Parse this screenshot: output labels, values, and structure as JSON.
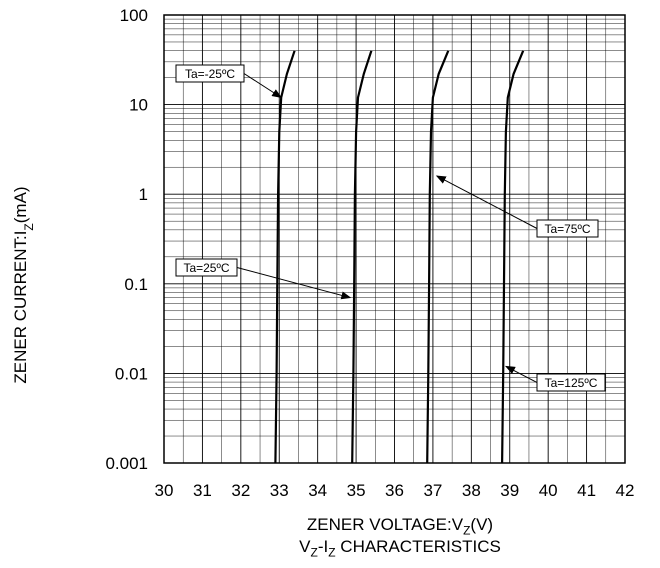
{
  "chart_data": {
    "type": "line",
    "xlabel": "ZENER VOLTAGE:VZ(V)",
    "xlabel_parts": {
      "pre": "ZENER VOLTAGE:V",
      "sub": "Z",
      "post": "(V)"
    },
    "ylabel": "ZENER CURRENT:IZ(mA)",
    "ylabel_parts": {
      "pre": "ZENER CURRENT:I",
      "sub": "Z",
      "post": "(mA)"
    },
    "caption": "VZ-IZ CHARACTERISTICS",
    "caption_parts": {
      "a": "V",
      "a_sub": "Z",
      "mid": "-I",
      "b_sub": "Z",
      "post": " CHARACTERISTICS"
    },
    "xlim": [
      30,
      42
    ],
    "ylim": [
      0.001,
      100
    ],
    "yscale": "log",
    "grid": true,
    "xticks": [
      "30",
      "31",
      "32",
      "33",
      "34",
      "35",
      "36",
      "37",
      "38",
      "39",
      "40",
      "41",
      "42"
    ],
    "yticks": [
      "0.001",
      "0.01",
      "0.1",
      "1",
      "10",
      "100"
    ],
    "series": [
      {
        "points": [
          [
            32.9,
            0.001
          ],
          [
            32.93,
            0.01
          ],
          [
            32.95,
            0.1
          ],
          [
            32.97,
            1
          ],
          [
            33.0,
            5
          ],
          [
            33.05,
            12
          ],
          [
            33.2,
            22
          ],
          [
            33.4,
            40
          ]
        ]
      },
      {
        "points": [
          [
            34.9,
            0.001
          ],
          [
            34.93,
            0.01
          ],
          [
            34.95,
            0.1
          ],
          [
            34.97,
            1
          ],
          [
            35.0,
            5
          ],
          [
            35.05,
            12
          ],
          [
            35.2,
            22
          ],
          [
            35.4,
            40
          ]
        ]
      },
      {
        "points": [
          [
            36.85,
            0.001
          ],
          [
            36.88,
            0.01
          ],
          [
            36.9,
            0.1
          ],
          [
            36.92,
            1
          ],
          [
            36.95,
            5
          ],
          [
            37.0,
            12
          ],
          [
            37.15,
            22
          ],
          [
            37.4,
            40
          ]
        ]
      },
      {
        "points": [
          [
            38.8,
            0.001
          ],
          [
            38.83,
            0.01
          ],
          [
            38.85,
            0.1
          ],
          [
            38.87,
            1
          ],
          [
            38.9,
            5
          ],
          [
            38.95,
            12
          ],
          [
            39.1,
            22
          ],
          [
            39.35,
            40
          ]
        ]
      }
    ],
    "annotations": [
      {
        "text": "Ta=-25ºC",
        "target": [
          33.05,
          12
        ]
      },
      {
        "text": "Ta=25ºC",
        "target": [
          34.85,
          0.07
        ]
      },
      {
        "text": "Ta=75ºC",
        "target": [
          37.1,
          1.6
        ]
      },
      {
        "text": "Ta=125ºC",
        "target": [
          38.9,
          0.012
        ]
      }
    ]
  }
}
